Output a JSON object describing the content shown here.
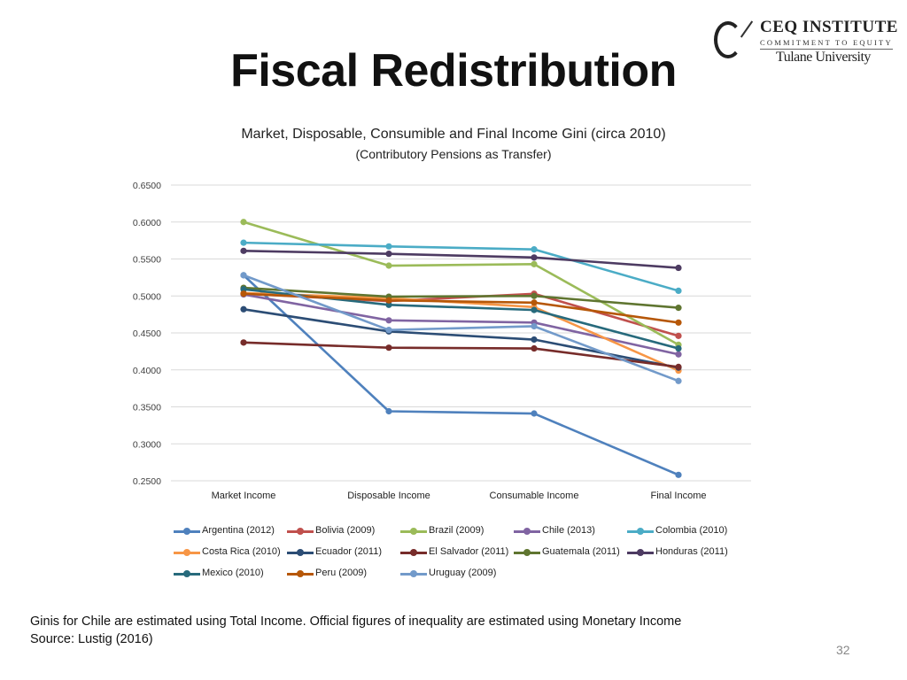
{
  "slide": {
    "title": "Fiscal Redistribution",
    "page_number": "32",
    "footnote_line1": "Ginis for Chile are estimated using Total Income. Official figures of inequality are estimated using Monetary Income",
    "footnote_line2": "Source: Lustig (2016)"
  },
  "logo": {
    "name": "CEQ INSTITUTE",
    "tagline": "COMMITMENT TO EQUITY",
    "university": "Tulane University"
  },
  "chart_data": {
    "type": "line",
    "title": "Market, Disposable, Consumible and Final Income Gini (circa 2010)",
    "subtitle": "(Contributory Pensions as Transfer)",
    "xlabel": "",
    "ylabel": "",
    "categories": [
      "Market Income",
      "Disposable Income",
      "Consumable Income",
      "Final Income"
    ],
    "ylim": [
      0.25,
      0.65
    ],
    "yticks": [
      "0.6500",
      "0.6000",
      "0.5500",
      "0.5000",
      "0.4500",
      "0.4000",
      "0.3500",
      "0.3000",
      "0.2500"
    ],
    "grid": true,
    "legend_position": "bottom",
    "series": [
      {
        "name": "Argentina (2012)",
        "color": "#4f81bd",
        "values": [
          0.528,
          0.344,
          0.341,
          0.258
        ]
      },
      {
        "name": "Bolivia (2009)",
        "color": "#c0504d",
        "values": [
          0.503,
          0.493,
          0.503,
          0.446
        ]
      },
      {
        "name": "Brazil (2009)",
        "color": "#9bbb59",
        "values": [
          0.6,
          0.541,
          0.543,
          0.434
        ]
      },
      {
        "name": "Chile (2013)",
        "color": "#8064a2",
        "values": [
          0.502,
          0.467,
          0.464,
          0.421
        ]
      },
      {
        "name": "Colombia (2010)",
        "color": "#4bacc6",
        "values": [
          0.572,
          0.567,
          0.563,
          0.507
        ]
      },
      {
        "name": "Costa Rica (2010)",
        "color": "#f79646",
        "values": [
          0.504,
          0.497,
          0.485,
          0.399
        ]
      },
      {
        "name": "Ecuador (2011)",
        "color": "#2c4d75",
        "values": [
          0.482,
          0.452,
          0.441,
          0.403
        ]
      },
      {
        "name": "El Salvador (2011)",
        "color": "#772c2a",
        "values": [
          0.437,
          0.43,
          0.429,
          0.404
        ]
      },
      {
        "name": "Guatemala (2011)",
        "color": "#5f7530",
        "values": [
          0.511,
          0.499,
          0.5,
          0.484
        ]
      },
      {
        "name": "Honduras (2011)",
        "color": "#4d3b62",
        "values": [
          0.561,
          0.557,
          0.552,
          0.538
        ]
      },
      {
        "name": "Mexico (2010)",
        "color": "#276a7c",
        "values": [
          0.509,
          0.488,
          0.481,
          0.429
        ]
      },
      {
        "name": "Peru (2009)",
        "color": "#b65708",
        "values": [
          0.503,
          0.494,
          0.491,
          0.464
        ]
      },
      {
        "name": "Uruguay (2009)",
        "color": "#729aca",
        "values": [
          0.528,
          0.454,
          0.459,
          0.385
        ]
      }
    ]
  }
}
